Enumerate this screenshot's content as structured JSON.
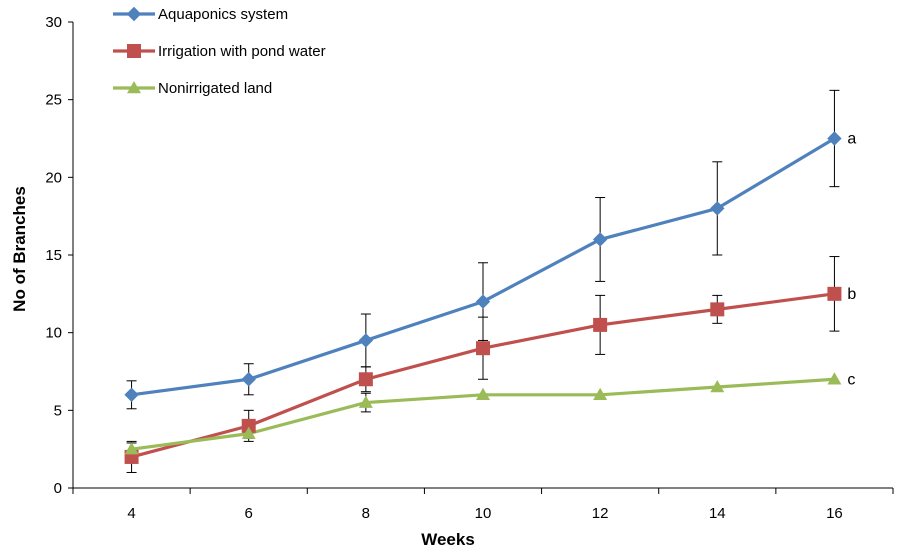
{
  "chart_data": {
    "type": "line",
    "xlabel": "Weeks",
    "ylabel": "No of Branches",
    "ylim": [
      0,
      30
    ],
    "y_ticks": [
      0,
      5,
      10,
      15,
      20,
      25,
      30
    ],
    "categories": [
      "4",
      "6",
      "8",
      "10",
      "12",
      "14",
      "16"
    ],
    "legend_position": "top-left",
    "grid": false,
    "series": [
      {
        "name": "Aquaponics system",
        "color": "#4F81BD",
        "marker": "diamond",
        "values": [
          6,
          7,
          9.5,
          12,
          16,
          18,
          22.5
        ],
        "error": [
          0.9,
          1.0,
          1.7,
          2.5,
          2.7,
          3.0,
          3.1
        ],
        "end_label": "a"
      },
      {
        "name": "Irrigation with pond water",
        "color": "#C0504D",
        "marker": "square",
        "values": [
          2,
          4,
          7,
          9,
          10.5,
          11.5,
          12.5
        ],
        "error": [
          1.0,
          1.0,
          0.8,
          2.0,
          1.9,
          0.9,
          2.4
        ],
        "end_label": "b"
      },
      {
        "name": "Nonirrigated land",
        "color": "#9BBB59",
        "marker": "triangle",
        "values": [
          2.5,
          3.5,
          5.5,
          6,
          6,
          6.5,
          7
        ],
        "error": [
          0.4,
          0.3,
          0.6,
          0,
          0,
          0,
          0
        ],
        "end_label": "c"
      }
    ]
  }
}
